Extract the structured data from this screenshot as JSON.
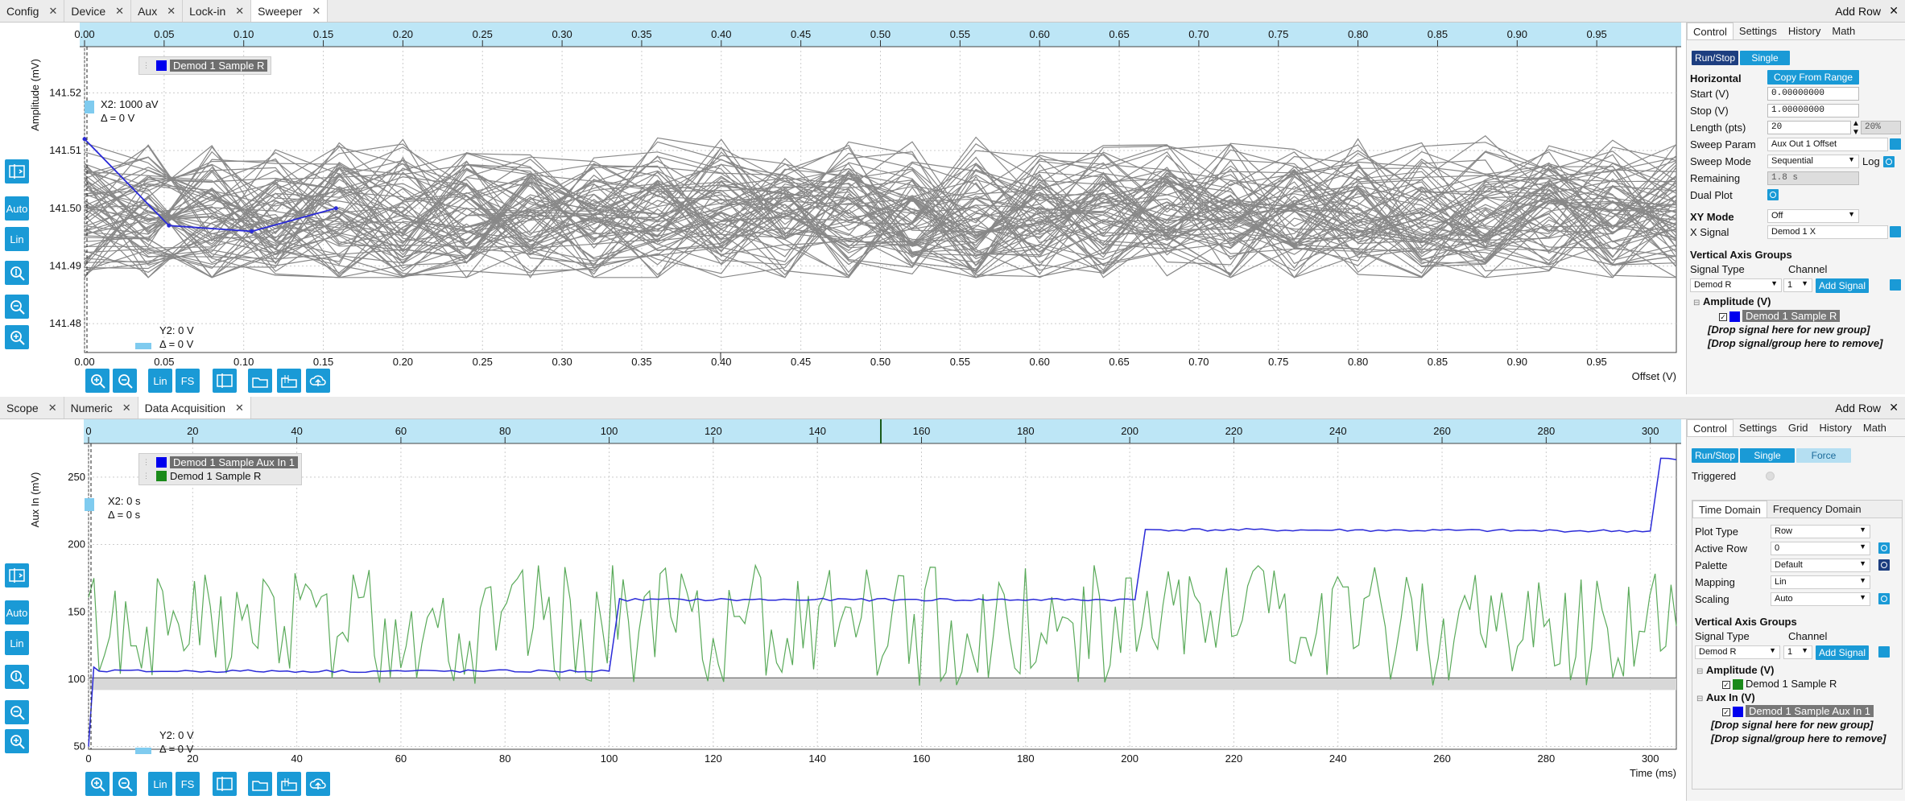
{
  "top": {
    "tabs": [
      {
        "label": "Config",
        "active": false
      },
      {
        "label": "Device",
        "active": false
      },
      {
        "label": "Aux",
        "active": false
      },
      {
        "label": "Lock-in",
        "active": false
      },
      {
        "label": "Sweeper",
        "active": true
      }
    ],
    "add_row": "Add Row",
    "plot": {
      "ylabel": "Amplitude (mV)",
      "xlabel": "Offset (V)",
      "legend": [
        {
          "name": "Demod 1 Sample R",
          "color": "#0000ee",
          "highlighted": true
        }
      ],
      "cursor_x": {
        "value": "X2: 1000 aV",
        "delta": "Δ = 0 V"
      },
      "cursor_y": {
        "value": "Y2: 0 V",
        "delta": "Δ = 0 V"
      },
      "left_tools": [
        "Auto",
        "Lin"
      ],
      "bottom_tools": [
        "Lin",
        "FS"
      ]
    },
    "side": {
      "tabs": [
        "Control",
        "Settings",
        "History",
        "Math"
      ],
      "run_stop": "Run/Stop",
      "single": "Single",
      "horizontal": "Horizontal",
      "copy_from_range": "Copy From Range",
      "start_label": "Start (V)",
      "start_value": "0.00000000",
      "stop_label": "Stop (V)",
      "stop_value": "1.00000000",
      "length_label": "Length (pts)",
      "length_value": "20",
      "length_pct": "20%",
      "sweep_param_label": "Sweep Param",
      "sweep_param_value": "Aux Out 1 Offset",
      "sweep_mode_label": "Sweep Mode",
      "sweep_mode_value": "Sequential",
      "log_label": "Log",
      "remaining_label": "Remaining",
      "remaining_value": "1.8 s",
      "dual_plot_label": "Dual Plot",
      "xy_mode_label": "XY Mode",
      "xy_mode_value": "Off",
      "x_signal_label": "X Signal",
      "x_signal_value": "Demod 1 X",
      "vag_title": "Vertical Axis Groups",
      "signal_type_label": "Signal Type",
      "channel_label": "Channel",
      "signal_type_value": "Demod R",
      "channel_value": "1",
      "add_signal": "Add Signal",
      "group1": "Amplitude (V)",
      "group1_signal": "Demod 1 Sample R",
      "drop_new": "[Drop signal here for new group]",
      "drop_remove": "[Drop signal/group here to remove]"
    }
  },
  "bottom": {
    "tabs": [
      {
        "label": "Scope",
        "active": false
      },
      {
        "label": "Numeric",
        "active": false
      },
      {
        "label": "Data Acquisition",
        "active": true
      }
    ],
    "add_row": "Add Row",
    "plot": {
      "ylabel": "Aux In (mV)",
      "xlabel": "Time (ms)",
      "legend": [
        {
          "name": "Demod 1 Sample Aux In 1",
          "color": "#0000ee",
          "highlighted": true
        },
        {
          "name": "Demod 1 Sample R",
          "color": "#1a8a1a",
          "highlighted": false
        }
      ],
      "cursor_x": {
        "value": "X2: 0 s",
        "delta": "Δ = 0 s"
      },
      "cursor_y": {
        "value": "Y2: 0 V",
        "delta": "Δ = 0 V"
      },
      "left_tools": [
        "Auto",
        "Lin"
      ],
      "bottom_tools": [
        "Lin",
        "FS"
      ]
    },
    "side": {
      "tabs": [
        "Control",
        "Settings",
        "Grid",
        "History",
        "Math"
      ],
      "run_stop": "Run/Stop",
      "single": "Single",
      "force": "Force",
      "triggered_label": "Triggered",
      "subtabs": [
        "Time Domain",
        "Frequency Domain"
      ],
      "plot_type_label": "Plot Type",
      "plot_type_value": "Row",
      "active_row_label": "Active Row",
      "active_row_value": "0",
      "palette_label": "Palette",
      "palette_value": "Default",
      "mapping_label": "Mapping",
      "mapping_value": "Lin",
      "scaling_label": "Scaling",
      "scaling_value": "Auto",
      "vag_title": "Vertical Axis Groups",
      "signal_type_label": "Signal Type",
      "channel_label": "Channel",
      "signal_type_value": "Demod R",
      "channel_value": "1",
      "add_signal": "Add Signal",
      "group1": "Amplitude (V)",
      "group1_signal": "Demod 1 Sample R",
      "group2": "Aux In (V)",
      "group2_signal": "Demod 1 Sample Aux In 1",
      "drop_new": "[Drop signal here for new group]",
      "drop_remove": "[Drop signal/group here to remove]"
    }
  },
  "chart_data": [
    {
      "type": "line",
      "title": "",
      "xlabel": "Offset (V)",
      "ylabel": "Amplitude (mV)",
      "xlim": [
        0,
        1
      ],
      "ylim": [
        141.475,
        141.528
      ],
      "x_ticks": [
        "0.00",
        "0.05",
        "0.10",
        "0.15",
        "0.20",
        "0.25",
        "0.30",
        "0.35",
        "0.40",
        "0.45",
        "0.50",
        "0.55",
        "0.60",
        "0.65",
        "0.70",
        "0.75",
        "0.80",
        "0.85",
        "0.90",
        "0.95"
      ],
      "y_ticks": [
        "141.48",
        "141.49",
        "141.50",
        "141.51",
        "141.52"
      ],
      "series": [
        {
          "name": "Demod 1 Sample R",
          "x": [
            0.0,
            0.053,
            0.105,
            0.158
          ],
          "values": [
            141.512,
            141.497,
            141.496,
            141.5
          ]
        }
      ],
      "history_traces": "many grey traces between 141.488 and 141.52"
    },
    {
      "type": "line",
      "title": "",
      "xlabel": "Time (ms)",
      "ylabel": "Aux In (mV)",
      "xlim": [
        0,
        305
      ],
      "ylim": [
        48,
        275
      ],
      "x_ticks": [
        "0",
        "20",
        "40",
        "60",
        "80",
        "100",
        "120",
        "140",
        "160",
        "180",
        "200",
        "220",
        "240",
        "260",
        "280",
        "300"
      ],
      "y_ticks": [
        "50",
        "100",
        "150",
        "200",
        "250"
      ],
      "series": [
        {
          "name": "Demod 1 Sample Aux In 1",
          "x": [
            0,
            1,
            2,
            100,
            102,
            201,
            203,
            300,
            302,
            305
          ],
          "values": [
            50,
            108,
            106,
            106,
            159,
            159,
            211,
            210,
            264,
            263
          ]
        },
        {
          "name": "Demod 1 Sample R",
          "x": [
            0,
            305
          ],
          "values": [
            140,
            140
          ],
          "noise": "green noisy trace roughly 95 to 215"
        }
      ]
    }
  ]
}
